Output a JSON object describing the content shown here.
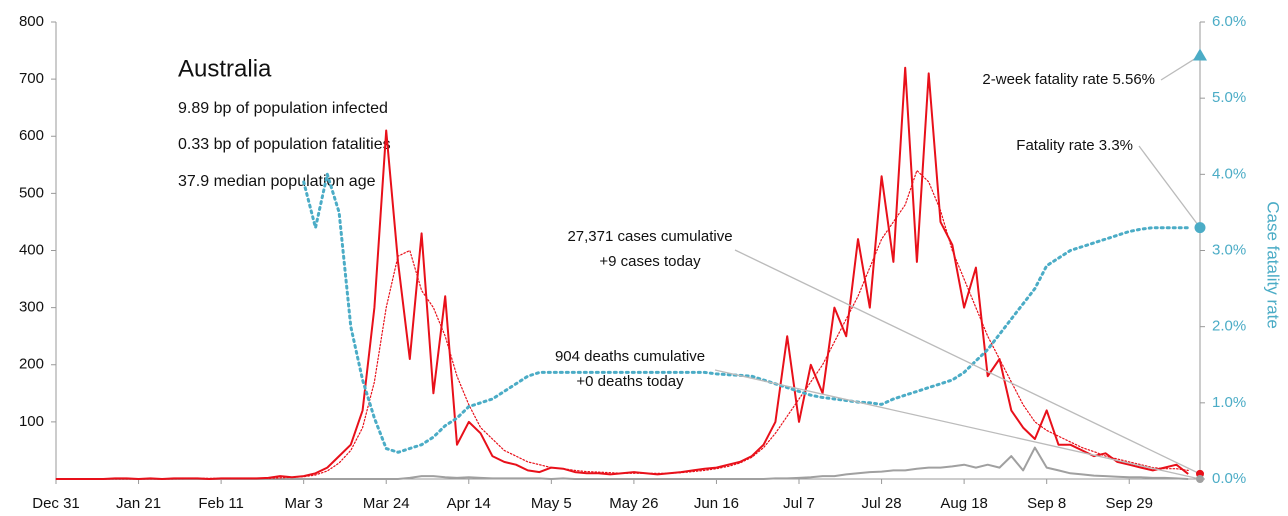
{
  "chart_data": {
    "type": "line",
    "title": "Australia",
    "subtitle_lines": [
      "9.89 bp of population infected",
      "0.33 bp of population fatalities",
      "37.9 median population age"
    ],
    "y2_label": "Case fatality rate",
    "annotations": [
      {
        "lines": [
          "2-week fatality rate 5.56%"
        ],
        "value": 5.56,
        "axis": "y2",
        "marker": "triangle",
        "color": "#4bacc6"
      },
      {
        "lines": [
          "Fatality rate 3.3%"
        ],
        "value": 3.3,
        "axis": "y2",
        "marker": "circle",
        "color": "#4bacc6"
      },
      {
        "lines": [
          "27,371 cases cumulative",
          "+9 cases today"
        ],
        "value": 9,
        "axis": "y",
        "marker": "circle",
        "color": "#e8101a"
      },
      {
        "lines": [
          "904 deaths cumulative",
          "+0 deaths today"
        ],
        "value": 0,
        "axis": "y",
        "marker": "circle",
        "color": "#a0a0a0"
      }
    ],
    "x": [
      0,
      3,
      6,
      9,
      12,
      15,
      18,
      21,
      24,
      27,
      30,
      33,
      36,
      39,
      42,
      45,
      48,
      51,
      54,
      57,
      60,
      63,
      66,
      69,
      72,
      75,
      78,
      81,
      84,
      87,
      90,
      93,
      96,
      99,
      102,
      105,
      108,
      111,
      114,
      117,
      120,
      123,
      126,
      129,
      132,
      135,
      138,
      141,
      144,
      147,
      150,
      153,
      156,
      159,
      162,
      165,
      168,
      171,
      174,
      177,
      180,
      183,
      186,
      189,
      192,
      195,
      198,
      201,
      204,
      207,
      210,
      213,
      216,
      219,
      222,
      225,
      228,
      231,
      234,
      237,
      240,
      243,
      246,
      249,
      252,
      255,
      258,
      261,
      264,
      267,
      270,
      273,
      276,
      279,
      282,
      285,
      288
    ],
    "xlim": [
      0,
      291
    ],
    "xticks": [
      {
        "value": 0,
        "label": "Dec 31"
      },
      {
        "value": 21,
        "label": "Jan 21"
      },
      {
        "value": 42,
        "label": "Feb 11"
      },
      {
        "value": 63,
        "label": "Mar 3"
      },
      {
        "value": 84,
        "label": "Mar 24"
      },
      {
        "value": 105,
        "label": "Apr 14"
      },
      {
        "value": 126,
        "label": "May 5"
      },
      {
        "value": 147,
        "label": "May 26"
      },
      {
        "value": 168,
        "label": "Jun 16"
      },
      {
        "value": 189,
        "label": "Jul 7"
      },
      {
        "value": 210,
        "label": "Jul 28"
      },
      {
        "value": 231,
        "label": "Aug 18"
      },
      {
        "value": 252,
        "label": "Sep 8"
      },
      {
        "value": 273,
        "label": "Sep 29"
      }
    ],
    "ylim": [
      0,
      800
    ],
    "yticks": [
      100,
      200,
      300,
      400,
      500,
      600,
      700,
      800
    ],
    "y2lim": [
      0,
      6
    ],
    "y2ticks": [
      {
        "value": 0,
        "label": "0.0%"
      },
      {
        "value": 1,
        "label": "1.0%"
      },
      {
        "value": 2,
        "label": "2.0%"
      },
      {
        "value": 3,
        "label": "3.0%"
      },
      {
        "value": 4,
        "label": "4.0%"
      },
      {
        "value": 5,
        "label": "5.0%"
      },
      {
        "value": 6,
        "label": "6.0%"
      }
    ],
    "series": [
      {
        "color": "#a0a0a0",
        "style": "solid",
        "width": 2,
        "values": [
          0,
          0,
          0,
          0,
          0,
          0,
          0,
          0,
          0,
          0,
          0,
          0,
          0,
          0,
          0,
          0,
          0,
          0,
          0,
          0,
          0,
          0,
          0,
          0,
          0,
          0,
          0,
          0,
          0,
          0,
          2,
          5,
          5,
          3,
          2,
          3,
          2,
          1,
          1,
          1,
          1,
          1,
          0,
          1,
          0,
          0,
          0,
          0,
          0,
          0,
          0,
          0,
          0,
          0,
          0,
          0,
          0,
          0,
          0,
          0,
          0,
          1,
          1,
          2,
          3,
          5,
          5,
          8,
          10,
          12,
          13,
          15,
          15,
          18,
          20,
          20,
          22,
          25,
          20,
          25,
          20,
          40,
          15,
          55,
          20,
          15,
          10,
          8,
          6,
          5,
          4,
          3,
          3,
          2,
          2,
          1,
          0
        ]
      },
      {
        "color": "#e8101a",
        "style": "solid",
        "width": 2,
        "values": [
          0,
          0,
          0,
          0,
          0,
          1,
          1,
          0,
          1,
          0,
          1,
          1,
          1,
          0,
          1,
          1,
          1,
          1,
          2,
          5,
          3,
          5,
          10,
          20,
          40,
          60,
          120,
          300,
          610,
          380,
          210,
          430,
          150,
          320,
          60,
          100,
          80,
          40,
          30,
          25,
          15,
          12,
          20,
          18,
          12,
          10,
          10,
          8,
          10,
          12,
          10,
          8,
          10,
          12,
          15,
          18,
          20,
          25,
          30,
          40,
          60,
          100,
          250,
          100,
          200,
          150,
          300,
          250,
          420,
          300,
          530,
          380,
          720,
          380,
          710,
          450,
          410,
          300,
          370,
          180,
          210,
          120,
          90,
          70,
          120,
          60,
          60,
          50,
          40,
          45,
          30,
          25,
          20,
          15,
          20,
          25,
          9
        ]
      },
      {
        "color": "#e8101a",
        "style": "dotted",
        "width": 1.2,
        "values": [
          0,
          0,
          0,
          0,
          0,
          0,
          0,
          0,
          0,
          0,
          0,
          1,
          1,
          1,
          1,
          1,
          1,
          1,
          1,
          2,
          3,
          4,
          7,
          14,
          28,
          50,
          90,
          170,
          300,
          390,
          400,
          330,
          300,
          250,
          180,
          130,
          90,
          70,
          50,
          40,
          30,
          25,
          20,
          18,
          15,
          13,
          12,
          11,
          10,
          10,
          10,
          10,
          10,
          11,
          13,
          15,
          18,
          22,
          28,
          38,
          55,
          80,
          110,
          140,
          170,
          200,
          240,
          280,
          320,
          370,
          420,
          450,
          480,
          540,
          520,
          470,
          400,
          350,
          300,
          250,
          210,
          170,
          130,
          100,
          85,
          75,
          65,
          55,
          48,
          40,
          35,
          30,
          25,
          20,
          18,
          18,
          15
        ]
      },
      {
        "color": "#4bacc6",
        "style": "dotted",
        "width": 3,
        "axis": "y2",
        "values": [
          null,
          null,
          null,
          null,
          null,
          null,
          null,
          null,
          null,
          null,
          null,
          null,
          null,
          null,
          null,
          null,
          null,
          null,
          null,
          null,
          null,
          3.9,
          3.3,
          4.0,
          3.5,
          2.0,
          1.3,
          0.8,
          0.4,
          0.35,
          0.4,
          0.45,
          0.55,
          0.7,
          0.8,
          0.95,
          1.0,
          1.05,
          1.15,
          1.25,
          1.35,
          1.4,
          1.4,
          1.4,
          1.4,
          1.4,
          1.4,
          1.4,
          1.4,
          1.4,
          1.4,
          1.4,
          1.4,
          1.4,
          1.4,
          1.4,
          1.38,
          1.37,
          1.36,
          1.35,
          1.3,
          1.25,
          1.2,
          1.15,
          1.1,
          1.07,
          1.05,
          1.03,
          1.01,
          1.0,
          0.98,
          1.05,
          1.1,
          1.15,
          1.2,
          1.25,
          1.3,
          1.4,
          1.55,
          1.7,
          1.9,
          2.1,
          2.3,
          2.5,
          2.8,
          2.9,
          3.0,
          3.05,
          3.1,
          3.15,
          3.2,
          3.25,
          3.28,
          3.3,
          3.3,
          3.3,
          3.3
        ]
      }
    ]
  }
}
